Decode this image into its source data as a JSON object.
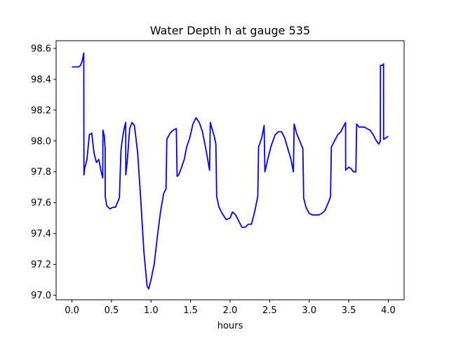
{
  "chart_data": {
    "type": "line",
    "title": "Water Depth h at gauge 535",
    "xlabel": "hours",
    "ylabel": "",
    "xlim": [
      -0.2,
      4.2
    ],
    "ylim": [
      96.97,
      98.65
    ],
    "xticks": [
      0.0,
      0.5,
      1.0,
      1.5,
      2.0,
      2.5,
      3.0,
      3.5,
      4.0
    ],
    "xtick_labels": [
      "0.0",
      "0.5",
      "1.0",
      "1.5",
      "2.0",
      "2.5",
      "3.0",
      "3.5",
      "4.0"
    ],
    "yticks": [
      97.0,
      97.2,
      97.4,
      97.6,
      97.8,
      98.0,
      98.2,
      98.4,
      98.6
    ],
    "ytick_labels": [
      "97.0",
      "97.2",
      "97.4",
      "97.6",
      "97.8",
      "98.0",
      "98.2",
      "98.4",
      "98.6"
    ],
    "grid": false,
    "legend": "none",
    "series_color": "#0000ff",
    "series": [
      {
        "x": [
          0.0,
          0.08,
          0.11,
          0.13,
          0.15,
          0.151,
          0.152,
          0.16,
          0.19,
          0.22,
          0.25,
          0.28,
          0.31,
          0.34,
          0.37,
          0.39,
          0.392,
          0.41,
          0.42,
          0.421,
          0.44,
          0.48,
          0.52,
          0.55,
          0.6,
          0.62,
          0.64,
          0.66,
          0.68,
          0.681,
          0.7,
          0.73,
          0.76,
          0.79,
          0.83,
          0.87,
          0.91,
          0.95,
          0.97,
          1.0,
          1.04,
          1.08,
          1.12,
          1.16,
          1.19,
          1.2,
          1.24,
          1.28,
          1.32,
          1.33,
          1.35,
          1.38,
          1.42,
          1.45,
          1.49,
          1.53,
          1.57,
          1.61,
          1.65,
          1.7,
          1.74,
          1.75,
          1.76,
          1.8,
          1.82,
          1.83,
          1.86,
          1.9,
          1.95,
          2.0,
          2.03,
          2.07,
          2.11,
          2.15,
          2.19,
          2.23,
          2.27,
          2.31,
          2.35,
          2.36,
          2.4,
          2.43,
          2.44,
          2.48,
          2.52,
          2.57,
          2.61,
          2.65,
          2.69,
          2.73,
          2.77,
          2.8,
          2.81,
          2.84,
          2.88,
          2.92,
          2.93,
          2.96,
          3.0,
          3.04,
          3.08,
          3.12,
          3.16,
          3.2,
          3.25,
          3.27,
          3.28,
          3.32,
          3.36,
          3.4,
          3.44,
          3.46,
          3.461,
          3.48,
          3.5,
          3.53,
          3.56,
          3.59,
          3.6,
          3.63,
          3.66,
          3.7,
          3.73,
          3.77,
          3.81,
          3.85,
          3.88,
          3.9,
          3.901,
          3.93,
          3.94,
          3.941,
          3.97,
          4.0
        ],
        "y": [
          98.48,
          98.48,
          98.49,
          98.52,
          98.57,
          98.08,
          97.78,
          97.82,
          97.88,
          98.04,
          98.05,
          97.92,
          97.86,
          97.88,
          97.8,
          97.76,
          98.07,
          98.03,
          97.95,
          97.64,
          97.58,
          97.56,
          97.57,
          97.57,
          97.63,
          97.94,
          98.02,
          98.08,
          98.12,
          97.78,
          97.87,
          98.08,
          98.12,
          98.1,
          97.93,
          97.62,
          97.28,
          97.06,
          97.04,
          97.1,
          97.2,
          97.38,
          97.54,
          97.66,
          97.69,
          98.01,
          98.05,
          98.07,
          98.08,
          97.77,
          97.78,
          97.82,
          97.88,
          97.96,
          98.02,
          98.11,
          98.15,
          98.12,
          98.06,
          97.93,
          97.81,
          98.12,
          98.1,
          98.03,
          97.98,
          97.64,
          97.57,
          97.53,
          97.49,
          97.5,
          97.54,
          97.52,
          97.48,
          97.44,
          97.44,
          97.46,
          97.46,
          97.54,
          97.64,
          97.96,
          98.02,
          98.1,
          97.8,
          97.89,
          97.97,
          98.04,
          98.06,
          98.06,
          98.02,
          97.95,
          97.88,
          97.8,
          98.11,
          98.05,
          98.0,
          97.95,
          97.63,
          97.57,
          97.53,
          97.52,
          97.52,
          97.52,
          97.53,
          97.55,
          97.61,
          97.64,
          97.96,
          98.0,
          98.04,
          98.06,
          98.1,
          98.12,
          97.81,
          97.82,
          97.83,
          97.82,
          97.8,
          97.8,
          98.11,
          98.09,
          98.09,
          98.09,
          98.08,
          98.07,
          98.04,
          98.0,
          97.98,
          98.0,
          98.49,
          98.49,
          98.5,
          98.01,
          98.02,
          98.03
        ]
      }
    ]
  }
}
